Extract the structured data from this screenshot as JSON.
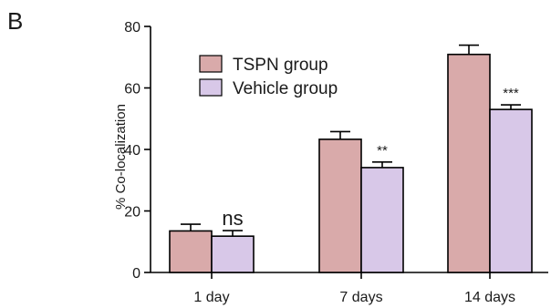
{
  "panel_label": "B",
  "chart_data": {
    "type": "bar",
    "title": "",
    "xlabel": "",
    "ylabel": "% Co-localization",
    "ylim": [
      0,
      80
    ],
    "yticks": [
      0,
      20,
      40,
      60,
      80
    ],
    "grid": false,
    "legend_position": "top-left",
    "categories": [
      "1 day",
      "7 days",
      "14 days"
    ],
    "series": [
      {
        "name": "TSPN group",
        "color": "#d9aaaa",
        "values": [
          13.5,
          43.3,
          70.9
        ],
        "errors": [
          2.2,
          2.5,
          3.0
        ]
      },
      {
        "name": "Vehicle group",
        "color": "#d8c8e8",
        "values": [
          11.8,
          34.1,
          53.0
        ],
        "errors": [
          1.8,
          1.8,
          1.5
        ]
      }
    ],
    "annotations": [
      "ns",
      "**",
      "***"
    ]
  }
}
